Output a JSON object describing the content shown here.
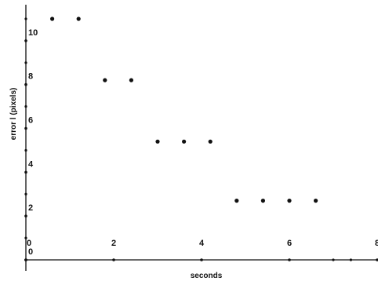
{
  "chart_data": {
    "type": "scatter",
    "title": "",
    "xlabel": "seconds",
    "ylabel": "error l (pixels)",
    "xlim": [
      0,
      8
    ],
    "ylim": [
      0,
      11
    ],
    "x_ticks": [
      0,
      2,
      4,
      6,
      8
    ],
    "x_tick_labels": [
      "0",
      "2",
      "4",
      "6",
      "8"
    ],
    "y_ticks": [
      0,
      2,
      4,
      6,
      8,
      10
    ],
    "y_tick_labels": [
      "0",
      "2",
      "4",
      "6",
      "8",
      "10"
    ],
    "grid": false,
    "legend": "none",
    "marker_color": "#111111",
    "series": [
      {
        "points": [
          {
            "x": 0.6,
            "y": 11.0
          },
          {
            "x": 1.2,
            "y": 11.0
          },
          {
            "x": 1.8,
            "y": 8.2
          },
          {
            "x": 2.4,
            "y": 8.2
          },
          {
            "x": 3.0,
            "y": 5.4
          },
          {
            "x": 3.6,
            "y": 5.4
          },
          {
            "x": 4.2,
            "y": 5.4
          },
          {
            "x": 4.8,
            "y": 2.7
          },
          {
            "x": 5.4,
            "y": 2.7
          },
          {
            "x": 6.0,
            "y": 2.7
          },
          {
            "x": 6.6,
            "y": 2.7
          }
        ]
      }
    ]
  }
}
